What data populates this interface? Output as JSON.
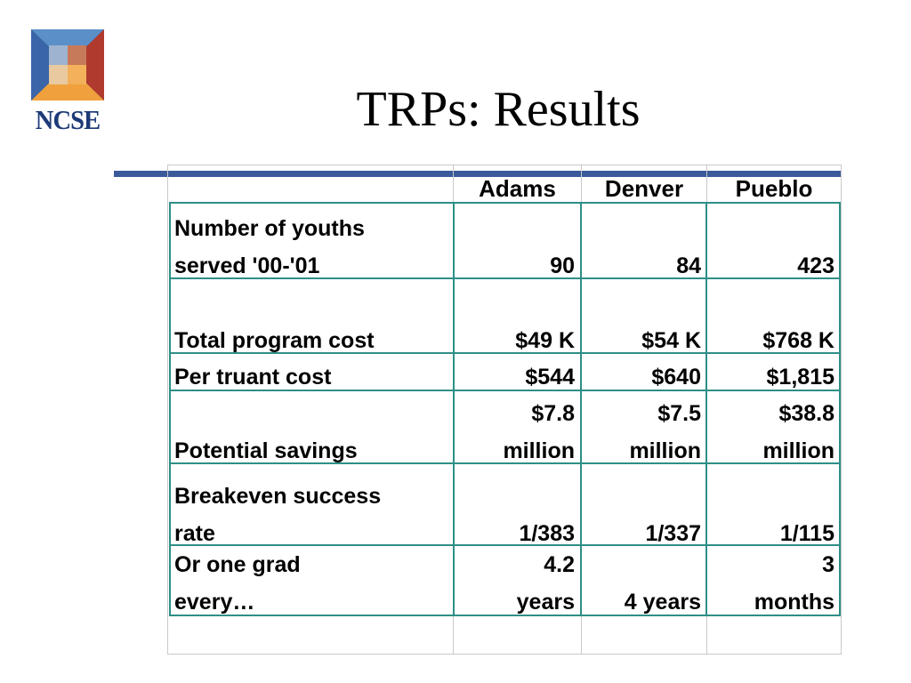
{
  "logo": {
    "text": "NCSE"
  },
  "title": "TRPs: Results",
  "table": {
    "columns": [
      "Adams",
      "Denver",
      "Pueblo"
    ],
    "rows": [
      {
        "label": [
          "Number of youths",
          "served '00-'01"
        ],
        "values": [
          [
            "",
            "90"
          ],
          [
            "",
            "84"
          ],
          [
            "",
            "423"
          ]
        ]
      },
      {
        "label": [
          "",
          "Total program cost"
        ],
        "values": [
          [
            "",
            "$49 K"
          ],
          [
            "",
            "$54 K"
          ],
          [
            "",
            "$768 K"
          ]
        ]
      },
      {
        "label": [
          "Per truant cost"
        ],
        "values": [
          [
            "$544"
          ],
          [
            "$640"
          ],
          [
            "$1,815"
          ]
        ]
      },
      {
        "label": [
          "",
          "Potential savings"
        ],
        "values": [
          [
            "$7.8",
            "million"
          ],
          [
            "$7.5",
            "million"
          ],
          [
            "$38.8",
            "million"
          ]
        ]
      },
      {
        "label": [
          "Breakeven success",
          "rate"
        ],
        "values": [
          [
            "",
            "1/383"
          ],
          [
            "",
            "1/337"
          ],
          [
            "",
            "1/115"
          ]
        ]
      },
      {
        "label": [
          "Or one grad",
          "every…"
        ],
        "values": [
          [
            "4.2",
            "years"
          ],
          [
            "",
            "4 years"
          ],
          [
            "3",
            "months"
          ]
        ]
      }
    ]
  }
}
